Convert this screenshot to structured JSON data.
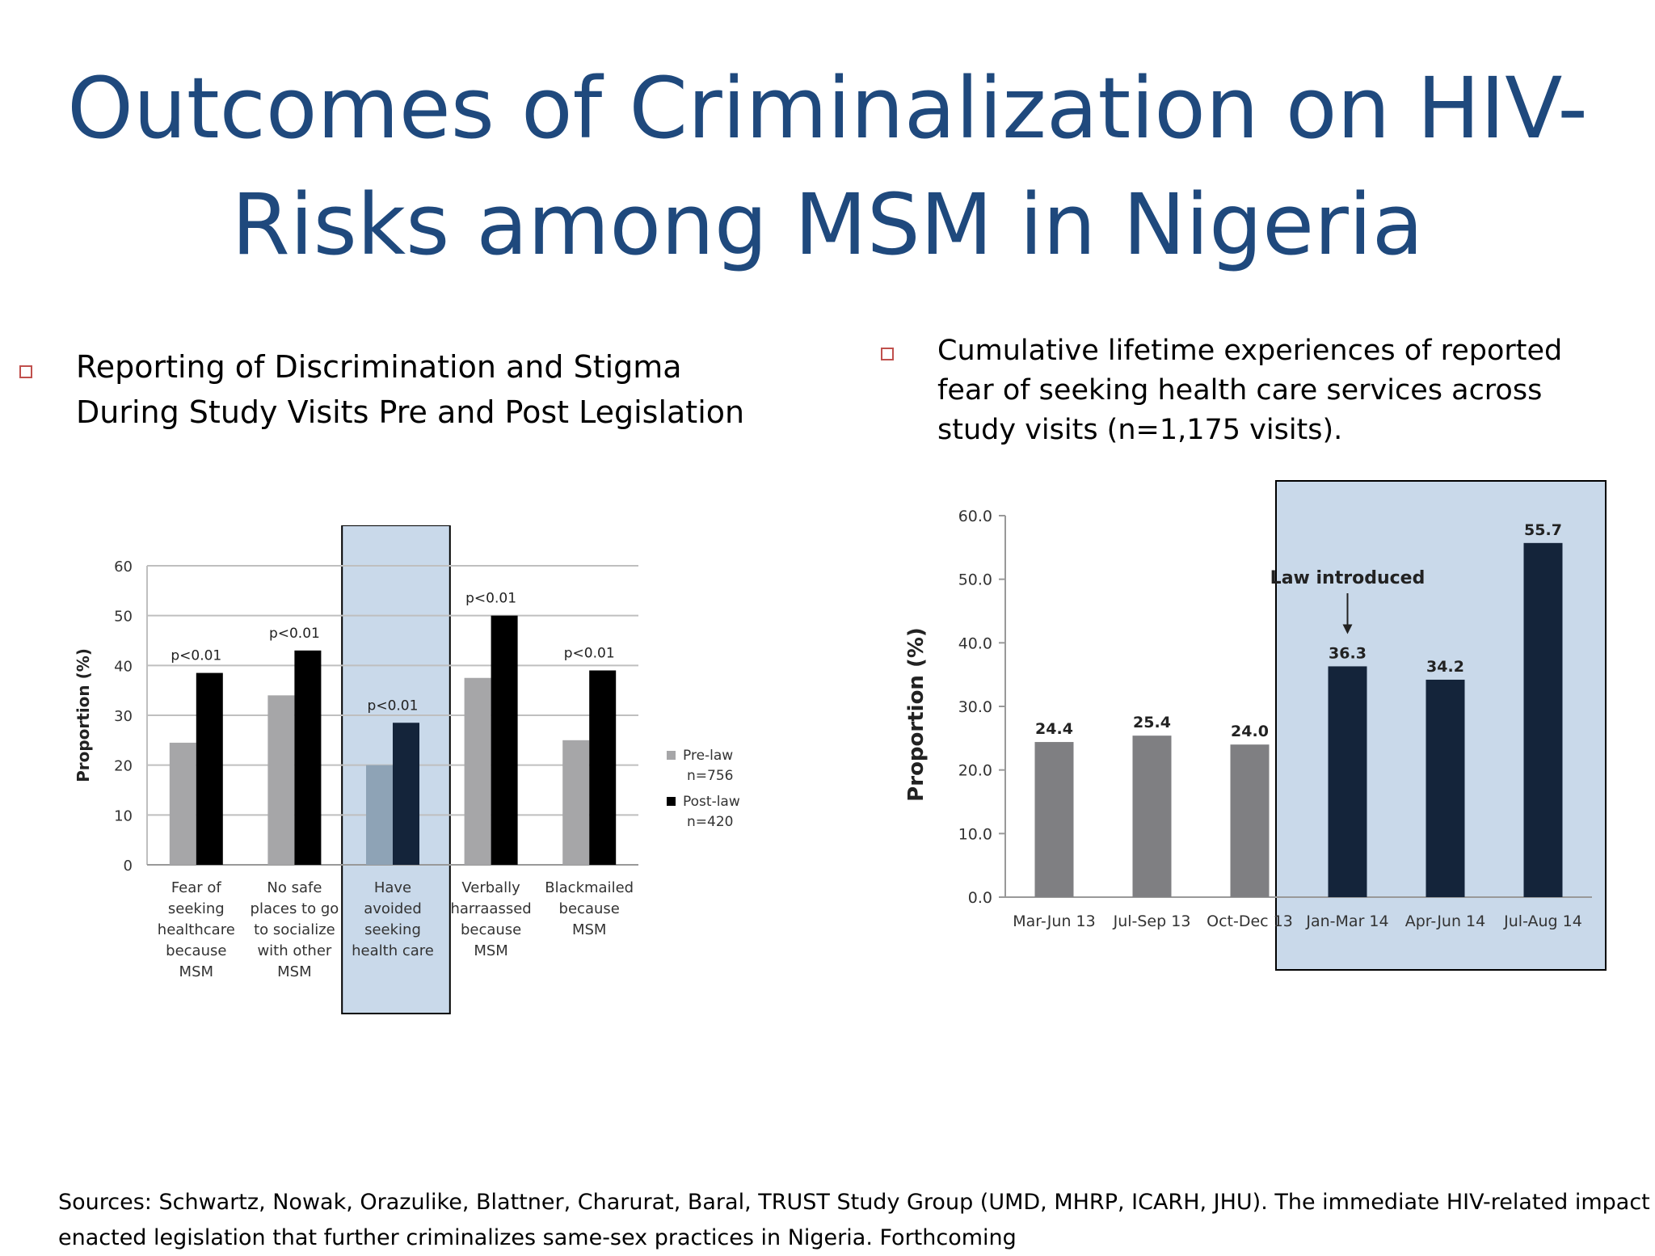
{
  "slide": {
    "title_line1": "Outcomes of Criminalization on HIV-",
    "title_line2": "Risks among MSM in Nigeria",
    "bullet_left": {
      "line1": "Reporting of Discrimination and Stigma",
      "line2": "During Study Visits Pre and Post Legislation"
    },
    "bullet_right": {
      "line1": "Cumulative lifetime experiences of reported",
      "line2": "fear of seeking health care services across",
      "line3": "study visits (n=1,175 visits)."
    },
    "sources_line1": "Sources: Schwartz, Nowak, Orazulike, Blattner, Charurat, Baral, TRUST Study Group (UMD, MHRP, ICARH, JHU). The immediate HIV-related impact of",
    "sources_line2": "enacted legislation that further criminalizes same-sex practices in Nigeria. Forthcoming",
    "colors": {
      "title": "#1f497d",
      "bullet_border": "#c0504d",
      "highlight": "#c9d9ea"
    }
  },
  "chart_data": [
    {
      "type": "bar",
      "ylabel": "Proportion (%)",
      "ylim": [
        0,
        60
      ],
      "yticks": [
        "0",
        "10",
        "20",
        "30",
        "40",
        "50",
        "60"
      ],
      "grid": true,
      "legend_position": "right",
      "categories": [
        [
          "Fear of",
          "seeking",
          "healthcare",
          "because",
          "MSM"
        ],
        [
          "No safe",
          "places to go",
          "to socialize",
          "with other",
          "MSM"
        ],
        [
          "Have",
          "avoided",
          "seeking",
          "health care"
        ],
        [
          "Verbally",
          "harraassed",
          "because",
          "MSM"
        ],
        [
          "Blackmailed",
          "because",
          "MSM"
        ]
      ],
      "series": [
        {
          "name": "Pre-law",
          "n_label": "n=756",
          "color": "#a6a6a8",
          "values": [
            24.5,
            34,
            20,
            37.5,
            25
          ]
        },
        {
          "name": "Post-law",
          "n_label": "n=420",
          "color": "#000000",
          "values": [
            38.5,
            43,
            28.5,
            50,
            39
          ]
        }
      ],
      "annotations": [
        "p<0.01",
        "p<0.01",
        "p<0.01",
        "p<0.01",
        "p<0.01"
      ],
      "highlighted_category": 2
    },
    {
      "type": "bar",
      "ylabel": "Proportion (%)",
      "ylim": [
        0,
        60
      ],
      "yticks": [
        "0.0",
        "10.0",
        "20.0",
        "30.0",
        "40.0",
        "50.0",
        "60.0"
      ],
      "grid": false,
      "categories": [
        "Mar-Jun 13",
        "Jul-Sep 13",
        "Oct-Dec 13",
        "Jan-Mar 14",
        "Apr-Jun 14",
        "Jul-Aug 14"
      ],
      "values": [
        24.4,
        25.4,
        24.0,
        36.3,
        34.2,
        55.7
      ],
      "value_labels": [
        "24.4",
        "25.4",
        "24.0",
        "36.3",
        "34.2",
        "55.7"
      ],
      "bar_colors": [
        "#7f7f82",
        "#7f7f82",
        "#7f7f82",
        "#14243a",
        "#14243a",
        "#14243a"
      ],
      "annotation": "Law introduced",
      "annotation_category": 3,
      "highlighted_from_category": 3
    }
  ]
}
